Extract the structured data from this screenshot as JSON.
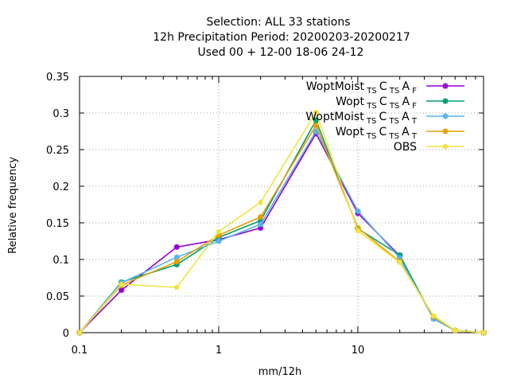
{
  "chart_data": {
    "type": "line",
    "title_lines": [
      "Selection: ALL      33 stations",
      "12h Precipitation  Period: 20200203-20200217",
      "Used  00 + 12-00 18-06 24-12"
    ],
    "xlabel": "mm/12h",
    "ylabel": "Relative frequency",
    "x_scale": "log",
    "xlim": [
      0.1,
      80
    ],
    "ylim": [
      0,
      0.35
    ],
    "x_ticks": [
      {
        "value": 0.1,
        "label": "0.1"
      },
      {
        "value": 1,
        "label": "1"
      },
      {
        "value": 10,
        "label": "10"
      }
    ],
    "y_ticks": [
      {
        "value": 0,
        "label": "0"
      },
      {
        "value": 0.05,
        "label": "0.05"
      },
      {
        "value": 0.1,
        "label": "0.1"
      },
      {
        "value": 0.15,
        "label": "0.15"
      },
      {
        "value": 0.2,
        "label": "0.2"
      },
      {
        "value": 0.25,
        "label": "0.25"
      },
      {
        "value": 0.3,
        "label": "0.3"
      },
      {
        "value": 0.35,
        "label": "0.35"
      }
    ],
    "grid": true,
    "legend_position": "top-right",
    "x": [
      0.1,
      0.2,
      0.5,
      1,
      2,
      5,
      10,
      20,
      35,
      50,
      80
    ],
    "series": [
      {
        "name": "WoptMoist",
        "name_sub": "TS",
        "name_mid": "C",
        "name_sub2": "TS",
        "name_mid2": "A",
        "name_sub3": "F",
        "color": "#9400d3",
        "marker": "star",
        "values": [
          0.0,
          0.058,
          0.117,
          0.127,
          0.143,
          0.272,
          0.163,
          0.105,
          0.019,
          0.003,
          0.0
        ]
      },
      {
        "name": "Wopt",
        "name_sub": "TS",
        "name_mid": "C",
        "name_sub2": "TS",
        "name_mid2": "A",
        "name_sub3": "F",
        "color": "#009e73",
        "marker": "star",
        "values": [
          0.0,
          0.069,
          0.093,
          0.13,
          0.153,
          0.29,
          0.142,
          0.106,
          0.019,
          0.003,
          0.0
        ]
      },
      {
        "name": "WoptMoist",
        "name_sub": "TS",
        "name_mid": "C",
        "name_sub2": "TS",
        "name_mid2": "A",
        "name_sub3": "T",
        "color": "#56b4e9",
        "marker": "star",
        "values": [
          0.0,
          0.068,
          0.103,
          0.125,
          0.148,
          0.275,
          0.166,
          0.102,
          0.019,
          0.003,
          0.0
        ]
      },
      {
        "name": "Wopt",
        "name_sub": "TS",
        "name_mid": "C",
        "name_sub2": "TS",
        "name_mid2": "A",
        "name_sub3": "T",
        "color": "#e69f00",
        "marker": "star",
        "values": [
          0.0,
          0.065,
          0.097,
          0.133,
          0.158,
          0.283,
          0.143,
          0.097,
          0.022,
          0.003,
          0.0
        ]
      },
      {
        "name": "OBS",
        "name_sub": "",
        "name_mid": "",
        "name_sub2": "",
        "name_mid2": "",
        "name_sub3": "",
        "color": "#f0e442",
        "marker": "dot",
        "values": [
          0.0,
          0.066,
          0.062,
          0.138,
          0.178,
          0.301,
          0.139,
          0.096,
          0.023,
          0.003,
          0.0
        ]
      }
    ]
  }
}
